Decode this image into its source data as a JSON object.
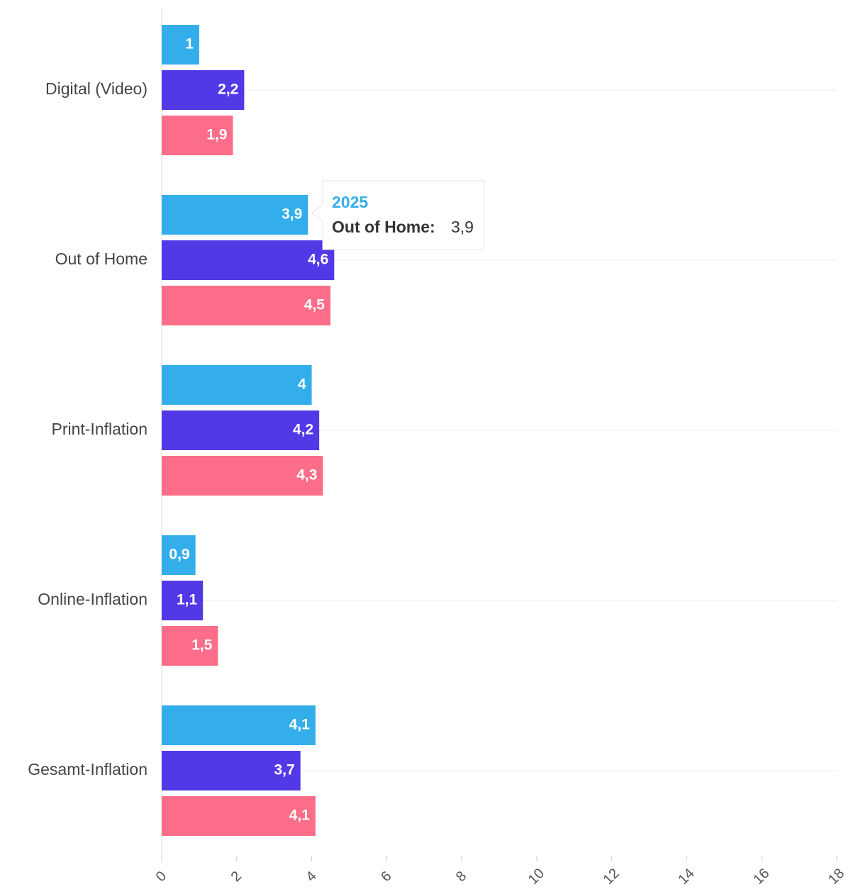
{
  "chart_data": {
    "type": "bar",
    "orientation": "horizontal",
    "categories": [
      "Digital (Video)",
      "Out of Home",
      "Print-Inflation",
      "Online-Inflation",
      "Gesamt-Inflation"
    ],
    "series": [
      {
        "name": "2025",
        "color": "#33aeea",
        "values": [
          1,
          3.9,
          4,
          0.9,
          4.1
        ],
        "value_labels": [
          "1",
          "3,9",
          "4",
          "0,9",
          "4,1"
        ]
      },
      {
        "color": "#5239e6",
        "values": [
          2.2,
          4.6,
          4.2,
          1.1,
          3.7
        ],
        "value_labels": [
          "2,2",
          "4,6",
          "4,2",
          "1,1",
          "3,7"
        ]
      },
      {
        "color": "#fc6d89",
        "values": [
          1.9,
          4.5,
          4.3,
          1.5,
          4.1
        ],
        "value_labels": [
          "1,9",
          "4,5",
          "4,3",
          "1,5",
          "4,1"
        ]
      }
    ],
    "xlim": [
      0,
      18
    ],
    "xticks": [
      0,
      2,
      4,
      6,
      8,
      10,
      12,
      14,
      16,
      18
    ],
    "grid": true,
    "tooltip": {
      "label": "Out of Home:",
      "value": "3,9"
    }
  }
}
